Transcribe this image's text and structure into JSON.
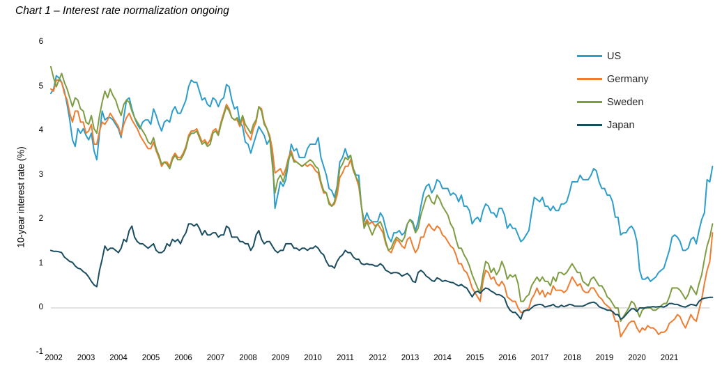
{
  "page": {
    "title": "Chart 1 – Interest rate normalization ongoing"
  },
  "axes": {
    "y_title": "10-year interest rate (%)",
    "y_ticks": [
      6,
      5,
      4,
      3,
      2,
      1,
      0,
      -1
    ],
    "x_ticks": [
      2002,
      2003,
      2004,
      2005,
      2006,
      2007,
      2008,
      2009,
      2010,
      2011,
      2012,
      2013,
      2014,
      2015,
      2016,
      2017,
      2018,
      2019,
      2020,
      2021
    ]
  },
  "colors": {
    "us": "#2D9DC9",
    "germany": "#ED7D31",
    "sweden": "#7E9D43",
    "japan": "#1A4C60",
    "zero_gridline": "#D9D9D9",
    "text": "#000000",
    "legend_text": "#262626"
  },
  "chart_data": {
    "type": "line",
    "title": "Chart 1 – Interest rate normalization ongoing",
    "xlabel": "",
    "ylabel": "10-year interest rate (%)",
    "ylim": [
      -1,
      6
    ],
    "xlim": [
      2002.0,
      2022.45
    ],
    "x_unit": "monthly, Jan 2002 – Jun 2022",
    "grid": "horizontal line at 0 only",
    "legend_position": "top-right",
    "series": [
      {
        "name": "US",
        "color": "#2D9DC9",
        "values": [
          4.85,
          4.95,
          5.25,
          5.2,
          5.1,
          4.9,
          4.6,
          4.25,
          3.8,
          3.65,
          4.05,
          3.95,
          4.05,
          3.9,
          3.8,
          3.95,
          3.55,
          3.35,
          3.95,
          4.45,
          4.25,
          4.3,
          4.3,
          4.25,
          4.15,
          4.05,
          3.85,
          4.3,
          4.7,
          4.75,
          4.5,
          4.3,
          4.15,
          4.05,
          4.2,
          4.25,
          4.25,
          4.15,
          4.5,
          4.35,
          4.15,
          4.0,
          4.2,
          4.25,
          4.2,
          4.45,
          4.55,
          4.4,
          4.4,
          4.55,
          4.7,
          5.0,
          5.15,
          5.1,
          5.1,
          4.9,
          4.7,
          4.75,
          4.6,
          4.55,
          4.75,
          4.7,
          4.55,
          4.7,
          4.75,
          5.05,
          5.0,
          4.7,
          4.5,
          4.55,
          4.2,
          4.1,
          3.75,
          3.7,
          3.5,
          3.7,
          3.9,
          4.1,
          4.0,
          3.9,
          3.7,
          3.8,
          3.5,
          2.25,
          2.55,
          2.85,
          2.75,
          2.9,
          3.3,
          3.7,
          3.55,
          3.6,
          3.4,
          3.4,
          3.4,
          3.6,
          3.7,
          3.7,
          3.7,
          3.85,
          3.4,
          3.2,
          3.0,
          2.7,
          2.65,
          2.5,
          2.75,
          3.3,
          3.4,
          3.6,
          3.4,
          3.45,
          3.15,
          3.0,
          3.0,
          2.3,
          1.95,
          2.15,
          2.0,
          1.95,
          1.95,
          1.95,
          2.15,
          2.05,
          1.8,
          1.6,
          1.5,
          1.7,
          1.7,
          1.75,
          1.65,
          1.7,
          1.9,
          2.0,
          1.95,
          1.75,
          1.95,
          2.3,
          2.6,
          2.75,
          2.8,
          2.6,
          2.7,
          2.9,
          2.85,
          2.7,
          2.7,
          2.7,
          2.55,
          2.6,
          2.55,
          2.4,
          2.55,
          2.3,
          2.3,
          2.2,
          1.9,
          2.0,
          2.05,
          1.95,
          2.2,
          2.35,
          2.3,
          2.15,
          2.15,
          2.05,
          2.25,
          2.25,
          2.1,
          1.8,
          1.9,
          1.8,
          1.8,
          1.65,
          1.5,
          1.55,
          1.65,
          1.75,
          2.15,
          2.5,
          2.45,
          2.4,
          2.5,
          2.3,
          2.3,
          2.2,
          2.3,
          2.2,
          2.2,
          2.35,
          2.35,
          2.4,
          2.6,
          2.85,
          2.85,
          2.85,
          3.0,
          2.9,
          2.9,
          2.9,
          3.0,
          3.15,
          3.1,
          2.85,
          2.7,
          2.7,
          2.55,
          2.55,
          2.4,
          2.05,
          2.05,
          1.65,
          1.7,
          1.7,
          1.8,
          1.85,
          1.75,
          1.5,
          0.85,
          0.65,
          0.65,
          0.7,
          0.6,
          0.65,
          0.7,
          0.8,
          0.85,
          0.9,
          1.1,
          1.3,
          1.6,
          1.65,
          1.6,
          1.5,
          1.3,
          1.3,
          1.35,
          1.55,
          1.6,
          1.45,
          1.75,
          2.0,
          2.15,
          2.9,
          2.85,
          3.2
        ]
      },
      {
        "name": "Germany",
        "color": "#ED7D31",
        "values": [
          4.95,
          4.9,
          5.15,
          5.15,
          5.1,
          4.85,
          4.7,
          4.4,
          4.2,
          4.45,
          4.45,
          4.2,
          4.2,
          3.95,
          4.0,
          4.15,
          3.7,
          3.7,
          4.0,
          4.2,
          4.15,
          4.25,
          4.4,
          4.3,
          4.2,
          4.1,
          3.9,
          4.15,
          4.3,
          4.4,
          4.25,
          4.15,
          4.05,
          3.9,
          3.8,
          3.7,
          3.6,
          3.6,
          3.75,
          3.55,
          3.4,
          3.2,
          3.3,
          3.3,
          3.2,
          3.4,
          3.5,
          3.4,
          3.4,
          3.5,
          3.65,
          3.9,
          4.0,
          4.0,
          4.05,
          3.9,
          3.75,
          3.8,
          3.7,
          3.8,
          4.0,
          4.05,
          3.95,
          4.2,
          4.4,
          4.6,
          4.5,
          4.3,
          4.25,
          4.25,
          4.1,
          4.3,
          4.0,
          3.9,
          3.8,
          4.05,
          4.2,
          4.55,
          4.5,
          4.2,
          4.05,
          3.9,
          3.6,
          3.05,
          3.1,
          3.15,
          3.0,
          3.15,
          3.4,
          3.55,
          3.35,
          3.3,
          3.25,
          3.2,
          3.25,
          3.2,
          3.25,
          3.2,
          3.1,
          3.05,
          2.8,
          2.6,
          2.6,
          2.4,
          2.3,
          2.35,
          2.55,
          2.95,
          3.05,
          3.2,
          3.2,
          3.35,
          3.1,
          2.95,
          2.75,
          2.3,
          1.85,
          2.0,
          1.9,
          1.95,
          1.85,
          1.9,
          1.8,
          1.7,
          1.45,
          1.3,
          1.25,
          1.4,
          1.55,
          1.5,
          1.4,
          1.35,
          1.55,
          1.6,
          1.4,
          1.25,
          1.35,
          1.6,
          1.6,
          1.8,
          1.9,
          1.8,
          1.75,
          1.85,
          1.8,
          1.65,
          1.6,
          1.5,
          1.4,
          1.35,
          1.2,
          1.0,
          1.0,
          0.85,
          0.8,
          0.65,
          0.45,
          0.35,
          0.25,
          0.15,
          0.6,
          0.85,
          0.8,
          0.65,
          0.7,
          0.55,
          0.5,
          0.6,
          0.5,
          0.25,
          0.2,
          0.15,
          0.15,
          0.0,
          -0.1,
          -0.1,
          -0.05,
          0.0,
          0.2,
          0.3,
          0.45,
          0.3,
          0.4,
          0.25,
          0.35,
          0.3,
          0.5,
          0.4,
          0.4,
          0.4,
          0.35,
          0.4,
          0.55,
          0.7,
          0.6,
          0.5,
          0.55,
          0.4,
          0.35,
          0.35,
          0.45,
          0.45,
          0.35,
          0.25,
          0.2,
          0.1,
          0.05,
          0.0,
          -0.1,
          -0.3,
          -0.3,
          -0.65,
          -0.55,
          -0.45,
          -0.35,
          -0.3,
          -0.3,
          -0.45,
          -0.55,
          -0.45,
          -0.5,
          -0.4,
          -0.45,
          -0.45,
          -0.5,
          -0.6,
          -0.55,
          -0.55,
          -0.5,
          -0.35,
          -0.3,
          -0.25,
          -0.15,
          -0.2,
          -0.35,
          -0.45,
          -0.3,
          -0.15,
          -0.25,
          -0.3,
          -0.05,
          0.2,
          0.55,
          0.85,
          1.05,
          1.7
        ]
      },
      {
        "name": "Sweden",
        "color": "#7E9D43",
        "values": [
          5.45,
          5.2,
          5.0,
          5.15,
          5.3,
          5.1,
          4.95,
          4.75,
          4.55,
          4.75,
          4.7,
          4.5,
          4.45,
          4.2,
          4.15,
          4.35,
          4.05,
          3.95,
          4.35,
          4.65,
          4.9,
          4.75,
          4.95,
          4.8,
          4.7,
          4.5,
          4.35,
          4.6,
          4.7,
          4.65,
          4.45,
          4.3,
          4.2,
          4.1,
          4.0,
          3.9,
          3.75,
          3.7,
          3.85,
          3.6,
          3.45,
          3.25,
          3.3,
          3.25,
          3.15,
          3.35,
          3.45,
          3.35,
          3.35,
          3.45,
          3.6,
          3.85,
          3.95,
          3.95,
          4.0,
          3.85,
          3.7,
          3.75,
          3.65,
          3.7,
          3.95,
          4.0,
          3.9,
          4.15,
          4.35,
          4.55,
          4.45,
          4.3,
          4.25,
          4.3,
          4.15,
          4.35,
          4.15,
          4.05,
          3.95,
          4.15,
          4.25,
          4.55,
          4.45,
          4.15,
          4.05,
          3.85,
          3.25,
          2.6,
          2.9,
          3.0,
          2.85,
          3.05,
          3.35,
          3.5,
          3.3,
          3.3,
          3.25,
          3.2,
          3.25,
          3.3,
          3.35,
          3.3,
          3.2,
          3.15,
          2.85,
          2.65,
          2.6,
          2.35,
          2.3,
          2.4,
          2.7,
          3.15,
          3.25,
          3.4,
          3.35,
          3.45,
          3.15,
          2.95,
          2.85,
          2.3,
          1.8,
          1.95,
          1.8,
          1.65,
          1.8,
          1.9,
          1.95,
          1.8,
          1.5,
          1.3,
          1.35,
          1.5,
          1.6,
          1.55,
          1.5,
          1.6,
          1.9,
          2.0,
          1.9,
          1.7,
          1.8,
          2.1,
          2.3,
          2.5,
          2.55,
          2.4,
          2.35,
          2.55,
          2.45,
          2.3,
          2.2,
          2.1,
          1.9,
          1.8,
          1.55,
          1.35,
          1.35,
          1.2,
          1.1,
          0.95,
          0.75,
          0.6,
          0.45,
          0.35,
          0.75,
          1.05,
          1.0,
          0.8,
          0.9,
          0.75,
          0.85,
          1.05,
          0.9,
          0.65,
          0.75,
          0.7,
          0.75,
          0.55,
          0.15,
          0.15,
          0.25,
          0.3,
          0.5,
          0.6,
          0.7,
          0.6,
          0.7,
          0.6,
          0.6,
          0.5,
          0.7,
          0.6,
          0.8,
          0.8,
          0.75,
          0.8,
          0.9,
          1.0,
          0.9,
          0.8,
          0.8,
          0.6,
          0.55,
          0.5,
          0.65,
          0.7,
          0.6,
          0.5,
          0.5,
          0.4,
          0.25,
          0.2,
          0.1,
          0.0,
          0.0,
          -0.3,
          -0.2,
          -0.1,
          0.0,
          0.15,
          0.1,
          -0.05,
          -0.2,
          -0.05,
          0.0,
          0.0,
          0.0,
          -0.05,
          -0.05,
          0.0,
          0.05,
          0.1,
          0.1,
          0.25,
          0.45,
          0.45,
          0.45,
          0.4,
          0.3,
          0.2,
          0.3,
          0.5,
          0.4,
          0.3,
          0.55,
          0.75,
          1.1,
          1.4,
          1.6,
          1.9
        ]
      },
      {
        "name": "Japan",
        "color": "#1A4C60",
        "values": [
          1.3,
          1.28,
          1.28,
          1.27,
          1.25,
          1.15,
          1.1,
          1.05,
          1.03,
          0.95,
          0.9,
          0.88,
          0.82,
          0.78,
          0.7,
          0.6,
          0.52,
          0.48,
          0.85,
          1.1,
          1.4,
          1.3,
          1.35,
          1.35,
          1.3,
          1.25,
          1.35,
          1.55,
          1.5,
          1.75,
          1.85,
          1.6,
          1.5,
          1.45,
          1.45,
          1.4,
          1.35,
          1.4,
          1.45,
          1.3,
          1.25,
          1.25,
          1.3,
          1.45,
          1.4,
          1.55,
          1.5,
          1.55,
          1.45,
          1.6,
          1.7,
          1.9,
          1.9,
          1.85,
          1.9,
          1.8,
          1.65,
          1.75,
          1.65,
          1.65,
          1.7,
          1.7,
          1.6,
          1.65,
          1.65,
          1.85,
          1.8,
          1.6,
          1.6,
          1.6,
          1.5,
          1.5,
          1.45,
          1.45,
          1.3,
          1.4,
          1.65,
          1.75,
          1.55,
          1.45,
          1.5,
          1.5,
          1.4,
          1.3,
          1.25,
          1.3,
          1.3,
          1.45,
          1.45,
          1.45,
          1.35,
          1.35,
          1.3,
          1.35,
          1.35,
          1.3,
          1.35,
          1.35,
          1.4,
          1.35,
          1.25,
          1.2,
          1.05,
          0.95,
          0.95,
          0.9,
          1.05,
          1.15,
          1.2,
          1.3,
          1.25,
          1.25,
          1.15,
          1.1,
          1.1,
          1.0,
          0.98,
          1.0,
          0.98,
          0.98,
          0.95,
          0.95,
          1.0,
          0.95,
          0.85,
          0.82,
          0.78,
          0.8,
          0.8,
          0.78,
          0.72,
          0.75,
          0.78,
          0.72,
          0.6,
          0.58,
          0.8,
          0.85,
          0.8,
          0.72,
          0.68,
          0.62,
          0.6,
          0.68,
          0.65,
          0.6,
          0.62,
          0.6,
          0.58,
          0.57,
          0.53,
          0.5,
          0.53,
          0.48,
          0.45,
          0.35,
          0.25,
          0.35,
          0.38,
          0.33,
          0.4,
          0.45,
          0.43,
          0.38,
          0.35,
          0.3,
          0.3,
          0.27,
          0.22,
          0.05,
          -0.05,
          -0.1,
          -0.1,
          -0.17,
          -0.25,
          -0.07,
          -0.05,
          -0.05,
          0.0,
          0.05,
          0.07,
          0.08,
          0.07,
          0.02,
          0.04,
          0.05,
          0.08,
          0.03,
          0.02,
          0.06,
          0.03,
          0.05,
          0.08,
          0.07,
          0.04,
          0.04,
          0.04,
          0.04,
          0.07,
          0.1,
          0.12,
          0.13,
          0.1,
          0.03,
          0.0,
          -0.02,
          -0.05,
          -0.05,
          -0.08,
          -0.15,
          -0.15,
          -0.25,
          -0.22,
          -0.15,
          -0.08,
          -0.02,
          -0.02,
          -0.08,
          0.0,
          0.0,
          0.0,
          0.02,
          0.02,
          0.03,
          0.02,
          0.03,
          0.03,
          0.02,
          0.05,
          0.1,
          0.1,
          0.08,
          0.08,
          0.05,
          0.03,
          0.02,
          0.05,
          0.08,
          0.07,
          0.05,
          0.15,
          0.2,
          0.22,
          0.23,
          0.24,
          0.24
        ]
      }
    ]
  }
}
